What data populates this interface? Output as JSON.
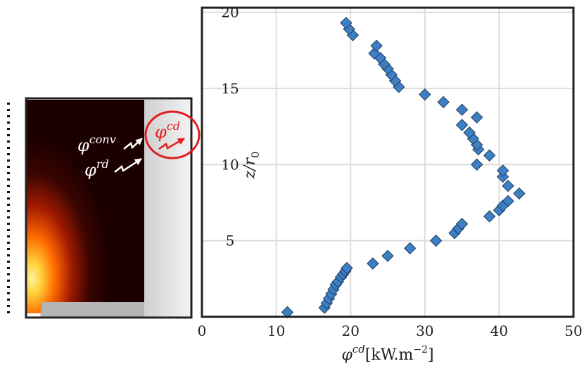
{
  "chart_data": {
    "type": "scatter",
    "xlabel_symbol": "φ",
    "xlabel_sup": "cd",
    "xlabel_unit": "[kW.m",
    "xlabel_exp": "−2",
    "xlabel_close": "]",
    "ylabel_var": "z/r",
    "ylabel_sub": "0",
    "xlim": [
      0,
      50
    ],
    "ylim": [
      0,
      20.3
    ],
    "xticks": [
      0,
      10,
      20,
      30,
      40,
      50
    ],
    "yticks": [
      5,
      10,
      15,
      20
    ],
    "grid": true,
    "marker": "diamond",
    "marker_color": "#3d7fc2",
    "points": [
      [
        11.5,
        0.3
      ],
      [
        16.5,
        0.6
      ],
      [
        16.8,
        0.9
      ],
      [
        17.1,
        1.2
      ],
      [
        17.4,
        1.5
      ],
      [
        17.7,
        1.8
      ],
      [
        18.0,
        2.1
      ],
      [
        18.3,
        2.3
      ],
      [
        18.7,
        2.6
      ],
      [
        19.0,
        2.8
      ],
      [
        19.3,
        3.0
      ],
      [
        19.5,
        3.2
      ],
      [
        23.0,
        3.5
      ],
      [
        25.0,
        4.0
      ],
      [
        28.0,
        4.5
      ],
      [
        31.5,
        5.0
      ],
      [
        34.0,
        5.5
      ],
      [
        34.5,
        5.8
      ],
      [
        35.0,
        6.1
      ],
      [
        38.7,
        6.6
      ],
      [
        40.0,
        7.0
      ],
      [
        40.5,
        7.3
      ],
      [
        41.2,
        7.6
      ],
      [
        42.7,
        8.1
      ],
      [
        41.2,
        8.6
      ],
      [
        40.5,
        9.2
      ],
      [
        40.5,
        9.6
      ],
      [
        37.0,
        10.0
      ],
      [
        38.7,
        10.6
      ],
      [
        37.2,
        11.0
      ],
      [
        37.0,
        11.3
      ],
      [
        36.5,
        11.7
      ],
      [
        36.0,
        12.1
      ],
      [
        35.0,
        12.6
      ],
      [
        37.0,
        13.1
      ],
      [
        35.0,
        13.6
      ],
      [
        32.5,
        14.1
      ],
      [
        30.0,
        14.6
      ],
      [
        26.5,
        15.1
      ],
      [
        26.0,
        15.5
      ],
      [
        25.5,
        15.9
      ],
      [
        25.0,
        16.3
      ],
      [
        24.5,
        16.6
      ],
      [
        24.0,
        17.0
      ],
      [
        23.2,
        17.3
      ],
      [
        23.5,
        17.8
      ],
      [
        20.3,
        18.5
      ],
      [
        19.8,
        18.9
      ],
      [
        19.4,
        19.3
      ]
    ]
  },
  "inset": {
    "flux_conv_symbol": "φ",
    "flux_conv_sup": "conv",
    "flux_rd_symbol": "φ",
    "flux_rd_sup": "rd",
    "flux_cd_symbol": "φ",
    "flux_cd_sup": "cd",
    "highlight_color": "#e31b1b",
    "wall_gradient": [
      "#cfcfcf",
      "#f4f4f4"
    ]
  }
}
